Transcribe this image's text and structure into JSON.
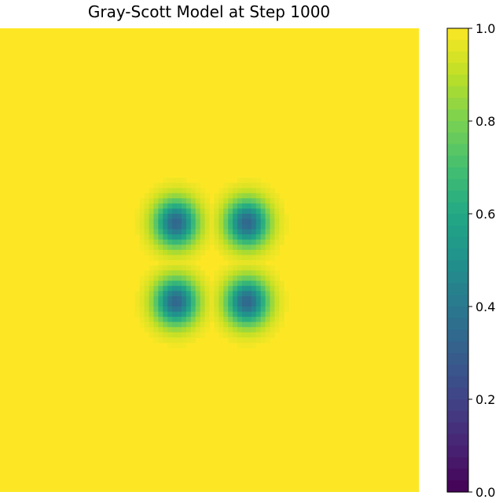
{
  "chart_data": {
    "type": "heatmap",
    "title": "Gray-Scott Model at Step 1000",
    "xlabel": "",
    "ylabel": "",
    "colormap": "viridis",
    "background_value": 1.0,
    "spots": [
      {
        "cx": 0.42,
        "cy": 0.42,
        "min_value": 0.33
      },
      {
        "cx": 0.59,
        "cy": 0.42,
        "min_value": 0.33
      },
      {
        "cx": 0.42,
        "cy": 0.59,
        "min_value": 0.33
      },
      {
        "cx": 0.59,
        "cy": 0.59,
        "min_value": 0.33
      }
    ],
    "colorbar": {
      "range": [
        0.0,
        1.0
      ],
      "ticks": [
        "0.0",
        "0.2",
        "0.4",
        "0.6",
        "0.8",
        "1.0"
      ],
      "tick_values": [
        0.0,
        0.2,
        0.4,
        0.6,
        0.8,
        1.0
      ]
    },
    "axes_visible": false,
    "grid": false
  }
}
